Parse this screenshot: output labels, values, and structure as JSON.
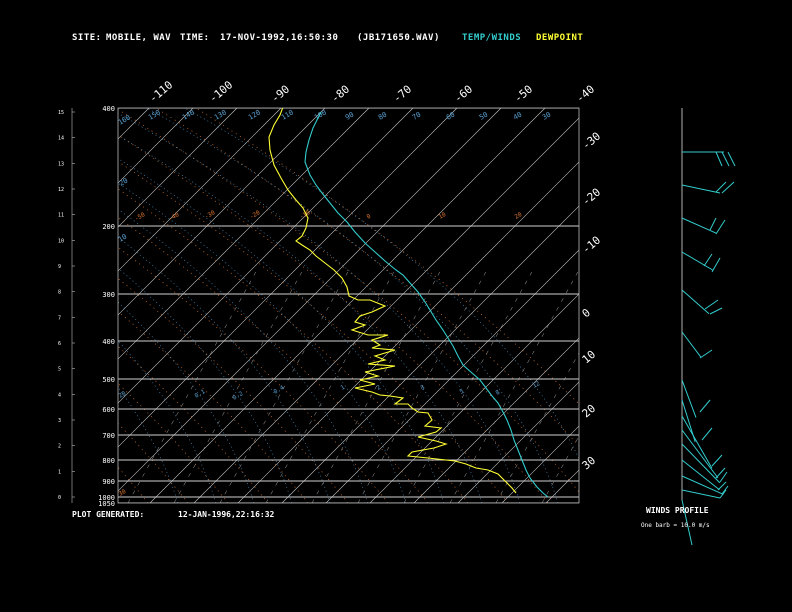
{
  "header": {
    "site_label": "SITE:",
    "site_value": "MOBILE, WAV",
    "time_label": "TIME:",
    "time_value": "17-NOV-1992,16:50:30",
    "file_value": "(JB171650.WAV)",
    "temp_legend": "TEMP/WINDS",
    "dew_legend": "DEWPOINT"
  },
  "footer": {
    "generated_label": "PLOT GENERATED:",
    "generated_value": "12-JAN-1996,22:16:32",
    "winds_title": "WINDS PROFILE",
    "winds_note": "One barb = 10.0 m/s"
  },
  "colors": {
    "temp": "#33cccc",
    "dewpoint": "#ffff33",
    "grid": "#c8c8c8",
    "dry_adiabat": "#e07830",
    "mixing_ratio": "#e8e800"
  },
  "chart_data": {
    "type": "line",
    "x_axis_type": "skewed-temperature",
    "y_axis_type": "log-pressure",
    "pressure_levels": [
      400,
      200,
      300,
      400,
      500,
      600,
      700,
      800,
      900,
      1000,
      1050
    ],
    "pressure_tick_labels": [
      "400",
      "200",
      "300",
      "400",
      "500",
      "600",
      "700",
      "800",
      "900",
      "1000",
      "1050"
    ],
    "height_ticks_km": [
      15,
      14,
      13,
      12,
      11,
      10,
      9,
      8,
      7,
      6,
      5,
      4,
      3,
      2,
      1,
      0
    ],
    "top_temp_labels": [
      "-110",
      "-100",
      "-90",
      "-80",
      "-70",
      "-60",
      "-50",
      "-40"
    ],
    "right_temp_labels": [
      "-30",
      "-20",
      "-10",
      "0",
      "10",
      "20",
      "30"
    ],
    "potential_temp_labels": [
      "160",
      "150",
      "140",
      "130",
      "120",
      "110",
      "100",
      "90",
      "80",
      "70",
      "60",
      "50",
      "40",
      "30",
      "20",
      "10"
    ],
    "mixing_ratio_labels": [
      "0.1",
      "0.2",
      "0.4",
      "1",
      "2",
      "3",
      "5",
      "8",
      "12",
      "20"
    ],
    "dry_adiabat_labels": [
      "-50",
      "-40",
      "-30",
      "-20",
      "-10",
      "0",
      "10",
      "20",
      "30"
    ],
    "series": [
      {
        "name": "TEMP/WINDS",
        "points": [
          [
            321,
            112
          ],
          [
            318,
            118
          ],
          [
            313,
            128
          ],
          [
            309,
            140
          ],
          [
            306,
            152
          ],
          [
            305,
            162
          ],
          [
            310,
            175
          ],
          [
            316,
            185
          ],
          [
            322,
            193
          ],
          [
            330,
            203
          ],
          [
            338,
            213
          ],
          [
            347,
            222
          ],
          [
            355,
            232
          ],
          [
            365,
            243
          ],
          [
            375,
            252
          ],
          [
            385,
            261
          ],
          [
            396,
            270
          ],
          [
            403,
            275
          ],
          [
            410,
            283
          ],
          [
            418,
            292
          ],
          [
            425,
            302
          ],
          [
            430,
            310
          ],
          [
            436,
            320
          ],
          [
            443,
            330
          ],
          [
            448,
            338
          ],
          [
            453,
            346
          ],
          [
            458,
            356
          ],
          [
            463,
            365
          ],
          [
            472,
            373
          ],
          [
            480,
            380
          ],
          [
            486,
            388
          ],
          [
            492,
            396
          ],
          [
            498,
            403
          ],
          [
            503,
            412
          ],
          [
            507,
            420
          ],
          [
            511,
            430
          ],
          [
            514,
            440
          ],
          [
            518,
            450
          ],
          [
            522,
            460
          ],
          [
            526,
            470
          ],
          [
            530,
            478
          ],
          [
            537,
            487
          ],
          [
            543,
            493
          ],
          [
            548,
            497
          ]
        ]
      },
      {
        "name": "DEWPOINT",
        "points": [
          [
            283,
            107
          ],
          [
            280,
            115
          ],
          [
            274,
            125
          ],
          [
            269,
            137
          ],
          [
            270,
            150
          ],
          [
            274,
            165
          ],
          [
            281,
            178
          ],
          [
            288,
            190
          ],
          [
            296,
            200
          ],
          [
            303,
            208
          ],
          [
            308,
            218
          ],
          [
            306,
            228
          ],
          [
            302,
            236
          ],
          [
            296,
            241
          ],
          [
            302,
            245
          ],
          [
            310,
            250
          ],
          [
            316,
            256
          ],
          [
            325,
            263
          ],
          [
            334,
            270
          ],
          [
            342,
            278
          ],
          [
            347,
            287
          ],
          [
            349,
            296
          ],
          [
            358,
            300
          ],
          [
            370,
            300
          ],
          [
            385,
            306
          ],
          [
            372,
            312
          ],
          [
            360,
            316
          ],
          [
            355,
            322
          ],
          [
            365,
            325
          ],
          [
            352,
            330
          ],
          [
            368,
            335
          ],
          [
            388,
            335
          ],
          [
            372,
            340
          ],
          [
            380,
            345
          ],
          [
            372,
            348
          ],
          [
            395,
            350
          ],
          [
            375,
            356
          ],
          [
            385,
            360
          ],
          [
            368,
            364
          ],
          [
            395,
            366
          ],
          [
            365,
            372
          ],
          [
            378,
            376
          ],
          [
            360,
            380
          ],
          [
            375,
            384
          ],
          [
            355,
            388
          ],
          [
            372,
            392
          ],
          [
            380,
            395
          ],
          [
            390,
            396
          ],
          [
            403,
            398
          ],
          [
            395,
            404
          ],
          [
            408,
            404
          ],
          [
            412,
            408
          ],
          [
            418,
            412
          ],
          [
            428,
            413
          ],
          [
            432,
            420
          ],
          [
            425,
            426
          ],
          [
            441,
            428
          ],
          [
            436,
            432
          ],
          [
            418,
            437
          ],
          [
            436,
            441
          ],
          [
            446,
            444
          ],
          [
            434,
            448
          ],
          [
            412,
            452
          ],
          [
            408,
            456
          ],
          [
            428,
            458
          ],
          [
            455,
            461
          ],
          [
            466,
            464
          ],
          [
            476,
            468
          ],
          [
            488,
            470
          ],
          [
            498,
            474
          ],
          [
            504,
            480
          ],
          [
            512,
            488
          ],
          [
            516,
            493
          ]
        ]
      }
    ],
    "wind_barbs": [
      {
        "y": 152,
        "len": 42,
        "dir": [
          1,
          0
        ],
        "feathers": [
          [
            728,
            152,
            735,
            166
          ],
          [
            722,
            152,
            729,
            166
          ],
          [
            716,
            152,
            722,
            166
          ]
        ]
      },
      {
        "y": 185,
        "len": 40,
        "dir": [
          0.95,
          0.2
        ],
        "feathers": [
          [
            722,
            193,
            734,
            182
          ],
          [
            716,
            192,
            726,
            182
          ]
        ]
      },
      {
        "y": 218,
        "len": 38,
        "dir": [
          0.9,
          0.4
        ],
        "feathers": [
          [
            716,
            234,
            725,
            220
          ],
          [
            710,
            230,
            716,
            218
          ]
        ]
      },
      {
        "y": 252,
        "len": 36,
        "dir": [
          0.85,
          0.5
        ],
        "feathers": [
          [
            712,
            272,
            720,
            258
          ],
          [
            704,
            266,
            712,
            254
          ]
        ]
      },
      {
        "y": 290,
        "len": 36,
        "dir": [
          0.75,
          0.66
        ],
        "feathers": [
          [
            710,
            314,
            722,
            308
          ],
          [
            705,
            309,
            718,
            300
          ]
        ]
      },
      {
        "y": 332,
        "len": 32,
        "dir": [
          0.6,
          0.8
        ],
        "feathers": [
          [
            700,
            358,
            712,
            350
          ]
        ]
      },
      {
        "y": 380,
        "len": 40,
        "dir": [
          0.35,
          0.94
        ],
        "feathers": [
          [
            700,
            412,
            710,
            400
          ]
        ]
      },
      {
        "y": 400,
        "len": 44,
        "dir": [
          0.3,
          0.95
        ],
        "feathers": [
          [
            702,
            440,
            712,
            428
          ]
        ]
      },
      {
        "y": 416,
        "len": 60,
        "dir": [
          0.5,
          0.87
        ],
        "feathers": [
          [
            712,
            466,
            722,
            455
          ]
        ]
      },
      {
        "y": 430,
        "len": 60,
        "dir": [
          0.6,
          0.8
        ],
        "feathers": [
          [
            716,
            478,
            725,
            468
          ]
        ]
      },
      {
        "y": 444,
        "len": 54,
        "dir": [
          0.7,
          0.72
        ],
        "feathers": [
          [
            720,
            482,
            727,
            472
          ]
        ]
      },
      {
        "y": 460,
        "len": 48,
        "dir": [
          0.78,
          0.62
        ],
        "feathers": [
          [
            718,
            490,
            726,
            482
          ]
        ]
      },
      {
        "y": 476,
        "len": 46,
        "dir": [
          0.9,
          0.4
        ],
        "feathers": [
          [
            722,
            494,
            728,
            486
          ]
        ]
      },
      {
        "y": 490,
        "len": 40,
        "dir": [
          0.95,
          0.2
        ],
        "feathers": [
          [
            720,
            498,
            726,
            490
          ]
        ]
      }
    ]
  }
}
